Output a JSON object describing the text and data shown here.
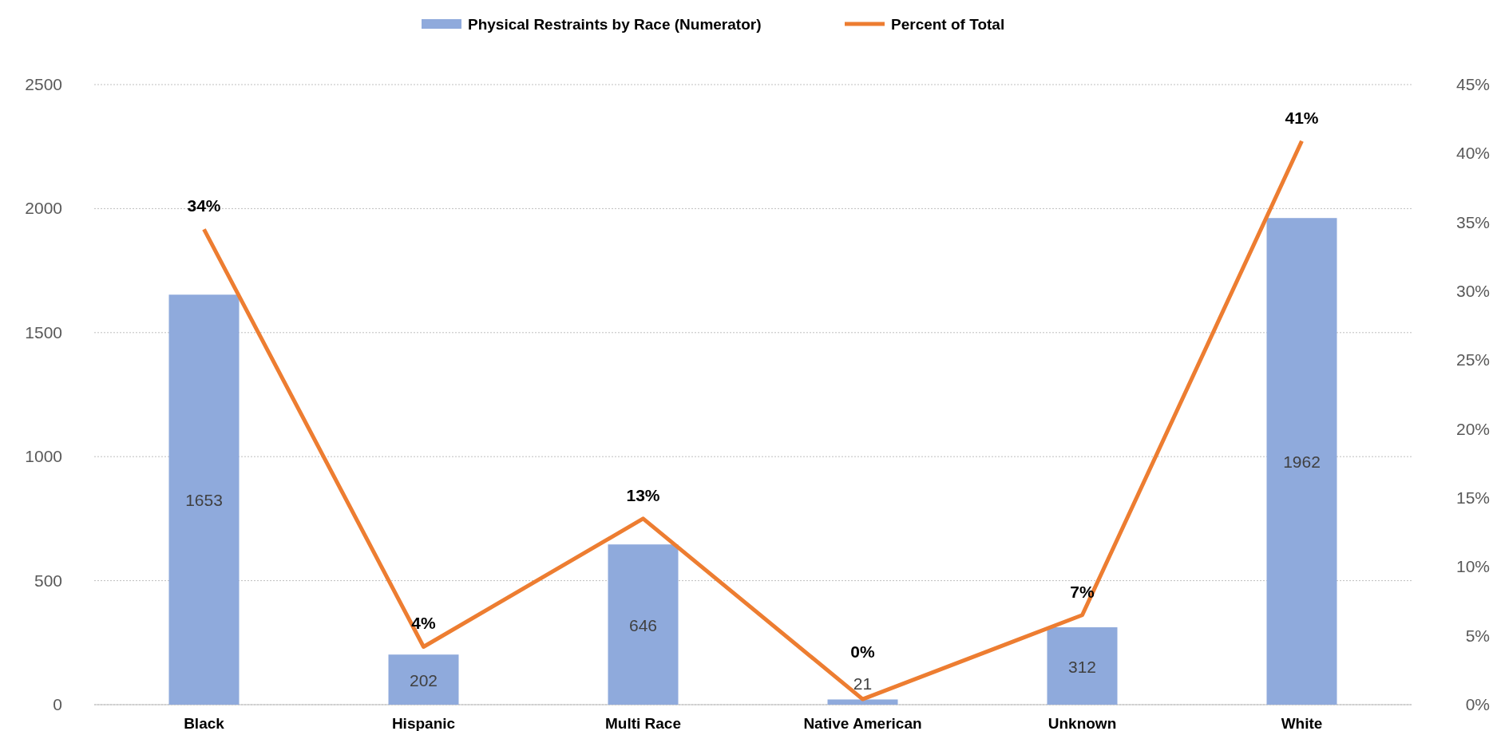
{
  "chart_data": {
    "type": "bar",
    "categories": [
      "Black",
      "Hispanic",
      "Multi Race",
      "Native American",
      "Unknown",
      "White"
    ],
    "series": [
      {
        "name": "Physical Restraints by Race (Numerator)",
        "color": "#8faadc",
        "values": [
          1653,
          202,
          646,
          21,
          312,
          1962
        ]
      },
      {
        "name": "Percent of Total",
        "type": "line",
        "axis": "y2",
        "color": "#ed7d31",
        "values": [
          34.5,
          4.2,
          13.5,
          0.4,
          6.5,
          40.9
        ],
        "value_labels": [
          "34%",
          "4%",
          "13%",
          "0%",
          "7%",
          "41%"
        ]
      }
    ],
    "data_labels": true,
    "ylim": [
      0,
      2500
    ],
    "yticks": [
      0,
      500,
      1000,
      1500,
      2000,
      2500
    ],
    "y2lim": [
      0,
      45
    ],
    "y2ticks": [
      {
        "value": 0,
        "label": "0%"
      },
      {
        "value": 5,
        "label": "5%"
      },
      {
        "value": 10,
        "label": "10%"
      },
      {
        "value": 15,
        "label": "15%"
      },
      {
        "value": 20,
        "label": "20%"
      },
      {
        "value": 25,
        "label": "25%"
      },
      {
        "value": 30,
        "label": "30%"
      },
      {
        "value": 35,
        "label": "35%"
      },
      {
        "value": 40,
        "label": "40%"
      },
      {
        "value": 45,
        "label": "45%"
      }
    ],
    "grid": "y",
    "legend": "top",
    "marker": "none"
  }
}
